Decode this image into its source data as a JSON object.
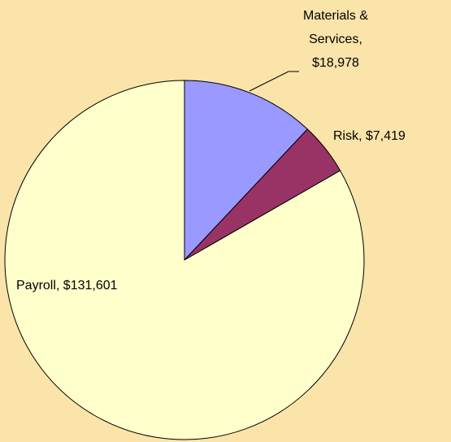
{
  "chart_data": {
    "type": "pie",
    "values": [
      18978,
      7419,
      131601
    ],
    "value_labels": [
      "Materials & Services, $18,978",
      "Risk, $7,419",
      "Payroll, $131,601"
    ],
    "colors": [
      "#9999ff",
      "#993366",
      "#ffffcc"
    ]
  }
}
